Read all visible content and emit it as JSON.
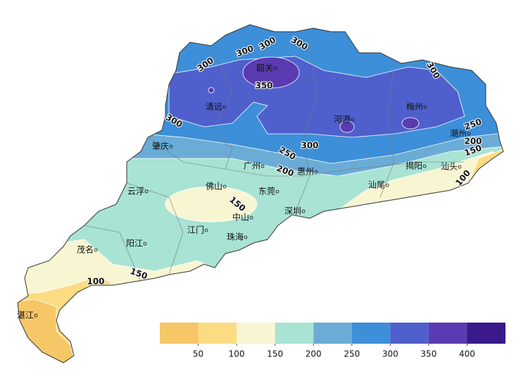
{
  "legend": {
    "colors": [
      "#f6c766",
      "#fbdc82",
      "#f8f6d2",
      "#a8e3d4",
      "#6aacd6",
      "#3d8fd9",
      "#4f60cd",
      "#5a3bb1",
      "#3a1a8a"
    ],
    "ticks": [
      50,
      100,
      150,
      200,
      250,
      300,
      350,
      400
    ]
  },
  "cities": [
    "韶关",
    "清远",
    "河源",
    "梅州",
    "潮州",
    "肇庆",
    "广州",
    "惠州",
    "揭阳",
    "汕头",
    "云浮",
    "佛山",
    "东莞",
    "汕尾",
    "深圳",
    "中山",
    "江门",
    "珠海",
    "阳江",
    "茂名",
    "湛江"
  ],
  "contour_labels": [
    300,
    300,
    300,
    300,
    300,
    300,
    300,
    350,
    250,
    250,
    200,
    200,
    150,
    150,
    100,
    100,
    150
  ]
}
